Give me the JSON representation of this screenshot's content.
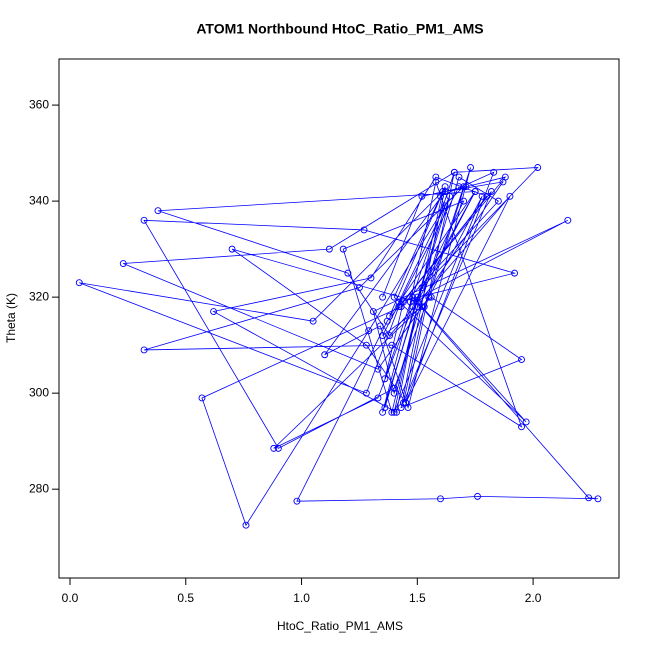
{
  "chart_data": {
    "type": "line",
    "title": "ATOM1 Northbound HtoC_Ratio_PM1_AMS",
    "x_label": "HtoC_Ratio_PM1_AMS",
    "y_label": "Theta (K)",
    "xlim": [
      -0.0475,
      2.371
    ],
    "ylim": [
      261.5,
      369.6
    ],
    "xticks": [
      {
        "value": 0,
        "label": "0.0"
      },
      0.5,
      {
        "value": 1,
        "label": "1.0"
      },
      1.5,
      {
        "value": 2,
        "label": "2.0"
      }
    ],
    "yticks": [
      280,
      300,
      320,
      340,
      360
    ],
    "series": [
      {
        "color": "#0000ff",
        "markers": true,
        "x": [
          1.35,
          1.52,
          1.71,
          1.88,
          1.42,
          1.28,
          0.04,
          1.05,
          1.61,
          1.4,
          1.78,
          1.55,
          1.33,
          0.23,
          1.12,
          1.66,
          1.45,
          1.9,
          1.38,
          1.2,
          0.38,
          1.75,
          1.5,
          1.36,
          1.62,
          1.29,
          0.76,
          0.57,
          1.43,
          1.85,
          1.68,
          1.4,
          1.31,
          2.15,
          1.47,
          1.58,
          1.95,
          1.39,
          0.32,
          1.25,
          1.7,
          1.53,
          1.44,
          1.82,
          1.37,
          0.98,
          1.6,
          1.76,
          2.28,
          2.24,
          1.48,
          1.35,
          1.64,
          1.42,
          1.92,
          1.27,
          0.32,
          0.9,
          1.4,
          1.55,
          1.73,
          1.46,
          1.34,
          1.1,
          1.62,
          1.87,
          1.5,
          1.41,
          0.62,
          1.3,
          1.58,
          1.8,
          1.44,
          1.36,
          1.66,
          2.02,
          1.52,
          1.39,
          1.18,
          1.7,
          1.48,
          1.33,
          0.88,
          1.56,
          1.95,
          1.43,
          1.62,
          1.38,
          1.75,
          1.5,
          0.7,
          1.28,
          1.45,
          1.83,
          1.6,
          1.4,
          1.97,
          1.52,
          1.35,
          1.68
        ],
        "values": [
          320,
          341,
          343,
          345,
          318,
          300,
          323,
          315,
          342,
          296,
          341,
          320,
          305,
          327,
          330,
          346,
          298,
          341,
          312,
          325,
          338,
          342,
          320,
          297,
          339,
          313,
          272.5,
          299,
          318,
          340,
          345,
          300,
          317,
          336,
          319,
          344,
          293,
          310,
          309,
          322,
          343,
          318,
          298,
          342,
          315,
          277.5,
          278,
          278.5,
          278,
          278.2,
          320,
          296,
          341,
          319,
          325,
          334,
          336,
          288.5,
          301,
          320,
          347,
          297,
          314,
          308,
          342,
          344,
          318,
          296,
          317,
          324,
          345,
          341,
          319,
          303,
          346,
          347,
          322,
          296,
          330,
          340,
          318,
          299,
          288.5,
          320,
          307,
          297,
          343,
          316,
          342,
          319,
          330,
          310,
          298,
          346,
          341,
          320,
          294,
          318,
          312,
          343
        ]
      }
    ]
  }
}
